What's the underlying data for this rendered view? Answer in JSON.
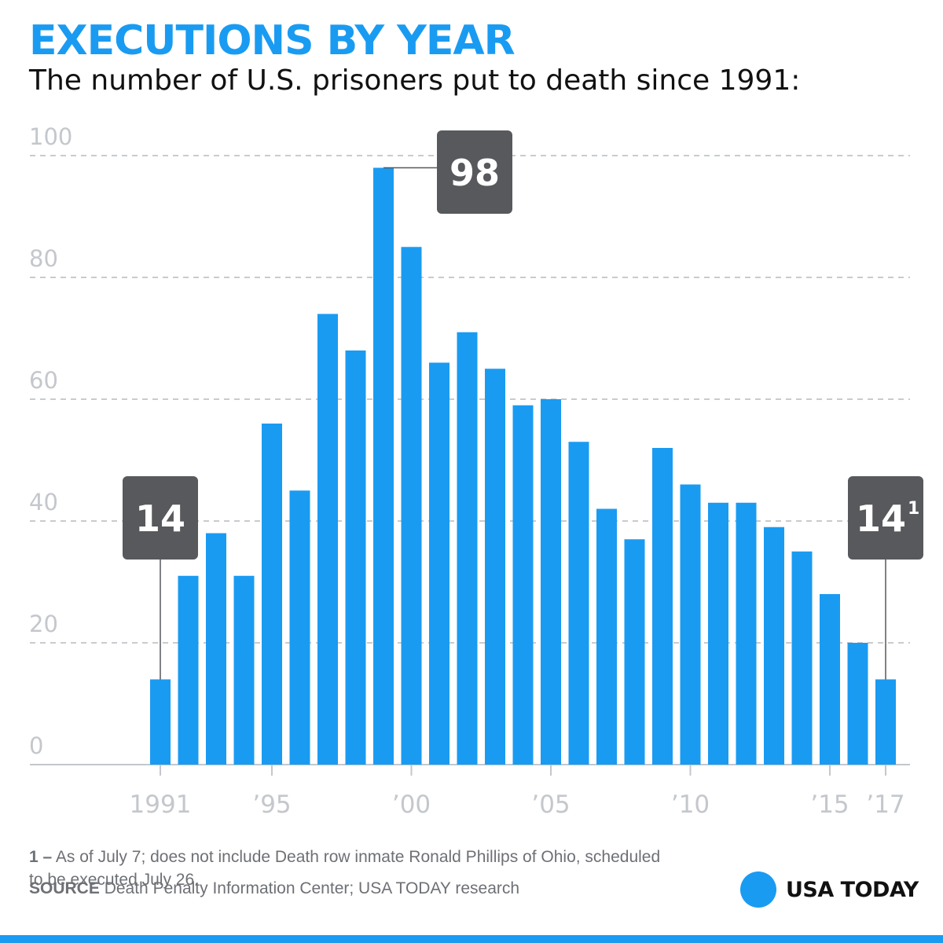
{
  "header": {
    "title": "EXECUTIONS BY YEAR",
    "subtitle": "The number of U.S. prisoners put to death since 1991:"
  },
  "chart_data": {
    "type": "bar",
    "title": "EXECUTIONS BY YEAR",
    "subtitle": "The number of U.S. prisoners put to death since 1991:",
    "xlabel": "",
    "ylabel": "",
    "ylim": [
      0,
      100
    ],
    "y_ticks": [
      0,
      20,
      40,
      60,
      80,
      100
    ],
    "grid": true,
    "categories": [
      "1991",
      "1992",
      "1993",
      "1994",
      "1995",
      "1996",
      "1997",
      "1998",
      "1999",
      "2000",
      "2001",
      "2002",
      "2003",
      "2004",
      "2005",
      "2006",
      "2007",
      "2008",
      "2009",
      "2010",
      "2011",
      "2012",
      "2013",
      "2014",
      "2015",
      "2016",
      "2017"
    ],
    "values": [
      14,
      31,
      38,
      31,
      56,
      45,
      74,
      68,
      98,
      85,
      66,
      71,
      65,
      59,
      60,
      53,
      42,
      37,
      52,
      46,
      43,
      43,
      39,
      35,
      28,
      20,
      14
    ],
    "x_tick_labels": [
      {
        "category": "1991",
        "label": "1991"
      },
      {
        "category": "1995",
        "label": "’95"
      },
      {
        "category": "2000",
        "label": "’00"
      },
      {
        "category": "2005",
        "label": "’05"
      },
      {
        "category": "2010",
        "label": "’10"
      },
      {
        "category": "2015",
        "label": "’15"
      },
      {
        "category": "2017",
        "label": "’17"
      }
    ],
    "annotations": [
      {
        "category": "1991",
        "text": "14",
        "sup": ""
      },
      {
        "category": "1999",
        "text": "98",
        "sup": ""
      },
      {
        "category": "2017",
        "text": "14",
        "sup": "1"
      }
    ],
    "colors": {
      "bar": "#1a9bf2",
      "grid": "#c9cbcf",
      "callout": "#57595c",
      "axis": "#c4c7cc"
    }
  },
  "footnote": {
    "marker": "1 –",
    "text": "As of July 7; does not include Death row inmate Ronald Phillips of Ohio, scheduled to be executed July 26."
  },
  "source": {
    "label": "SOURCE",
    "text": "Death Penalty Information Center; USA TODAY research"
  },
  "brand": {
    "name": "USA TODAY",
    "color": "#1a9bf2"
  }
}
